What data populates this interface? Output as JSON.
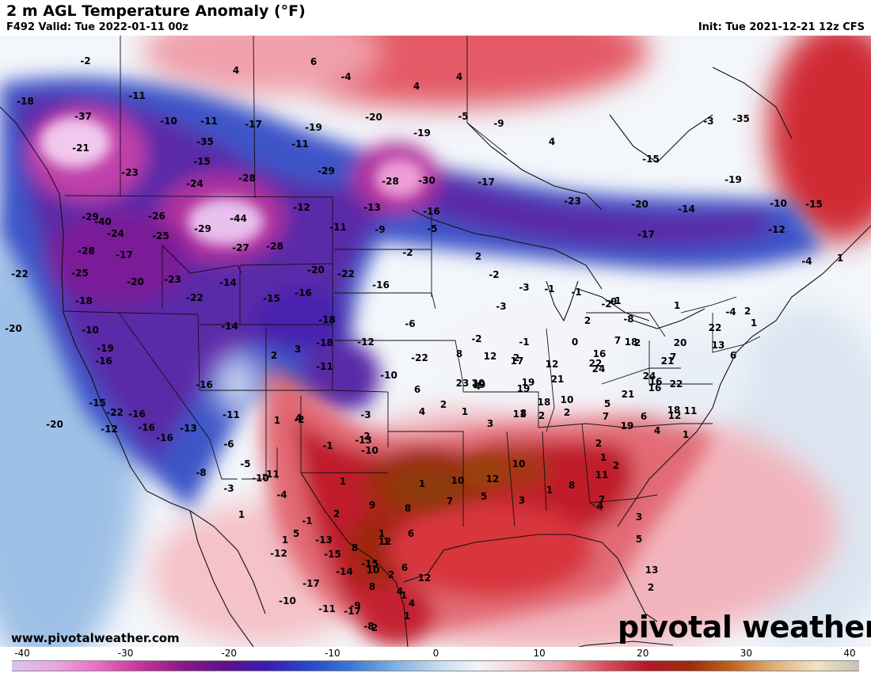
{
  "header": {
    "title": "2 m AGL Temperature Anomaly (°F)",
    "valid": "F492 Valid: Tue 2022-01-11 00z",
    "init": "Init: Tue 2021-12-21 12z CFS"
  },
  "footer": {
    "website": "www.pivotalweather.com",
    "wordmark": "pivotal weather"
  },
  "colorbar": {
    "ticks": [
      "-40",
      "-30",
      "-20",
      "-10",
      "0",
      "10",
      "20",
      "30",
      "40"
    ],
    "stops": [
      "#d8c4ec",
      "#e9a7e0",
      "#ea6fc6",
      "#c4379c",
      "#8b1a86",
      "#61108a",
      "#3b1bb4",
      "#2a45cc",
      "#3a78d2",
      "#7aaee0",
      "#c2d8ee",
      "#f2f4f8",
      "#f6d2d8",
      "#eea0ac",
      "#d8505e",
      "#b41826",
      "#9a2b0c",
      "#c0651e",
      "#e0b078",
      "#efe3c4",
      "#c8c0b4"
    ]
  },
  "map_labels": [
    "-2",
    "4",
    "6",
    "4",
    "-4",
    "4",
    "-18",
    "-37",
    "-11",
    "-10",
    "-11",
    "-17",
    "-19",
    "-20",
    "-19",
    "-5",
    "-9",
    "4",
    "-3",
    "-35",
    "-21",
    "-35",
    "-15",
    "-11",
    "-29",
    "-23",
    "-40",
    "-24",
    "-28",
    "-28",
    "-30",
    "-17",
    "-15",
    "-19",
    "-12",
    "-13",
    "-16",
    "-23",
    "-20",
    "-14",
    "-10",
    "-26",
    "-44",
    "-29",
    "-24",
    "-25",
    "-29",
    "-11",
    "-9",
    "-5",
    "-17",
    "-12",
    "-15",
    "-4",
    "-28",
    "-27",
    "-28",
    "-2",
    "-25",
    "-20",
    "-23",
    "-14",
    "-22",
    "-17",
    "-22",
    "-20",
    "-16",
    "-15",
    "-16",
    "-18",
    "-22",
    "-10",
    "-18",
    "-14",
    "-16",
    "-6",
    "-20",
    "-19",
    "-18",
    "-11",
    "-12",
    "-10",
    "-22",
    "-16",
    "-15",
    "-16",
    "-20",
    "-22",
    "-16",
    "-16",
    "-12",
    "-13",
    "-11",
    "-6",
    "-8",
    "-5",
    "-10",
    "-3",
    "1",
    "2",
    "3",
    "1",
    "4",
    "2",
    "-2",
    "-3",
    "-1",
    "-1",
    "-1",
    "0",
    "-8",
    "-2",
    "-3",
    "-2",
    "2",
    "-1",
    "0",
    "2",
    "7",
    "2",
    "1",
    "-4",
    "2",
    "1",
    "1",
    "8",
    "12",
    "17",
    "12",
    "16",
    "18",
    "24",
    "24",
    "20",
    "22",
    "23",
    "20",
    "19",
    "21",
    "22",
    "16",
    "21",
    "22",
    "19",
    "19",
    "18",
    "21",
    "16",
    "18",
    "7",
    "6",
    "2",
    "1",
    "3",
    "11",
    "2",
    "7",
    "19",
    "12",
    "11",
    "13",
    "4",
    "6",
    "4",
    "8",
    "2",
    "10",
    "5",
    "6",
    "4",
    "1",
    "2",
    "1",
    "2",
    "11",
    "8",
    "4",
    "7",
    "3",
    "5",
    "13",
    "2",
    "1",
    "10",
    "12",
    "10",
    "8",
    "7",
    "5",
    "3",
    "1",
    "6",
    "9",
    "12",
    "10",
    "8",
    "6",
    "12",
    "8",
    "2",
    "4",
    "1",
    "4",
    "5",
    "1",
    "1",
    "2",
    "1",
    "-10",
    "-13",
    "-1",
    "-2",
    "-3",
    "-2",
    "-11",
    "-4",
    "-1",
    "-13",
    "-15",
    "-15",
    "-17",
    "-17",
    "-14",
    "-12",
    "-10",
    "-11",
    "-8",
    "-9",
    "2",
    "1",
    "1"
  ]
}
